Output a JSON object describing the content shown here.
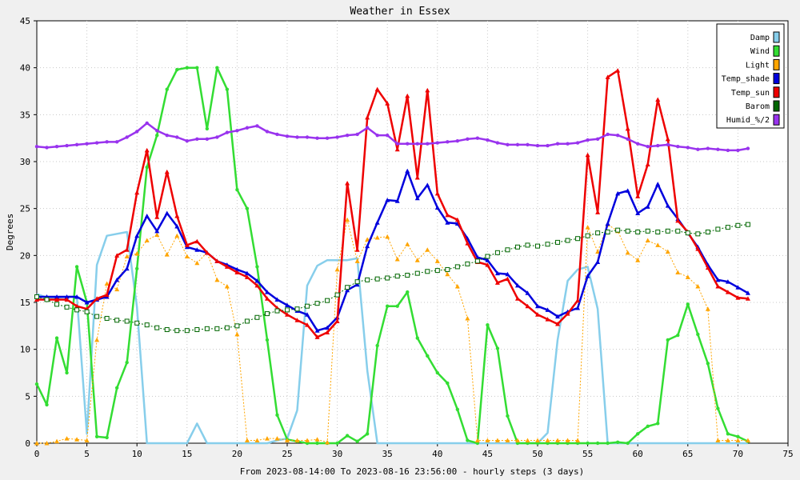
{
  "chart_data": {
    "type": "line",
    "title": "Weather in Essex",
    "xlabel": "From 2023-08-14:00 To 2023-08-16 23:56:00 - hourly steps (3 days)",
    "ylabel": "Degrees",
    "xlim": [
      0,
      75
    ],
    "ylim": [
      0,
      45
    ],
    "xticks": [
      0,
      5,
      10,
      15,
      20,
      25,
      30,
      35,
      40,
      45,
      50,
      55,
      60,
      65,
      70,
      75
    ],
    "yticks": [
      0,
      5,
      10,
      15,
      20,
      25,
      30,
      35,
      40,
      45
    ],
    "grid": true,
    "legend_position": "top-right",
    "series": [
      {
        "name": "Damp",
        "color": "#87ceeb",
        "style": "solid",
        "marker": "none",
        "values": [
          15.9,
          15.5,
          15.5,
          15.6,
          15.6,
          1.0,
          19.0,
          22.1,
          22.3,
          22.5,
          14.5,
          0,
          0,
          0,
          0,
          0,
          2.1,
          0,
          0,
          0,
          0,
          0,
          0,
          0,
          0.3,
          0.5,
          3.5,
          16.8,
          18.9,
          19.5,
          19.5,
          19.5,
          19.7,
          7.7,
          0,
          0,
          0,
          0,
          0,
          0,
          0,
          0,
          0,
          0,
          0,
          0,
          0,
          0,
          0,
          0,
          0,
          1.1,
          11.0,
          17.3,
          18.5,
          18.8,
          14.3,
          0,
          0,
          0,
          0,
          0,
          0,
          0,
          0,
          0,
          0,
          0,
          0,
          0,
          0,
          0
        ]
      },
      {
        "name": "Wind",
        "color": "#33dd33",
        "style": "solid",
        "marker": "dot",
        "values": [
          6.3,
          4.1,
          11.2,
          7.5,
          18.8,
          15.0,
          0.7,
          0.6,
          5.9,
          8.6,
          18.6,
          29.4,
          32.8,
          37.7,
          39.8,
          40.0,
          40.0,
          33.5,
          40.0,
          37.7,
          27.0,
          25.0,
          18.8,
          11.0,
          3.0,
          0.4,
          0.2,
          0,
          0,
          0,
          0,
          0.8,
          0.2,
          1.0,
          10.4,
          14.6,
          14.6,
          16.1,
          11.2,
          9.3,
          7.5,
          6.4,
          3.6,
          0.3,
          0,
          12.6,
          10.1,
          2.9,
          0,
          0,
          0,
          0,
          0,
          0,
          0,
          0,
          0,
          0,
          0.1,
          0,
          1.0,
          1.8,
          2.1,
          11.0,
          11.5,
          14.8,
          11.6,
          8.5,
          3.7,
          1.0,
          0.7,
          0.2
        ]
      },
      {
        "name": "Light",
        "color": "#ffa500",
        "style": "dotted",
        "marker": "triangle",
        "values": [
          0,
          0,
          0.2,
          0.5,
          0.4,
          0.3,
          11.0,
          17.0,
          16.4,
          19.9,
          20.2,
          21.6,
          22.2,
          20.1,
          22.1,
          19.9,
          19.2,
          20.3,
          17.4,
          16.7,
          11.6,
          0.3,
          0.3,
          0.5,
          0.5,
          0.3,
          0.3,
          0.3,
          0.4,
          0.1,
          18.5,
          23.8,
          19.4,
          21.7,
          21.9,
          22.0,
          19.6,
          21.2,
          19.5,
          20.6,
          19.4,
          18.0,
          16.7,
          13.3,
          0.3,
          0.3,
          0.3,
          0.3,
          0.3,
          0.3,
          0.3,
          0.3,
          0.3,
          0.3,
          0.3,
          23.0,
          20.4,
          23.3,
          22.6,
          20.3,
          19.5,
          21.6,
          21.1,
          20.4,
          18.2,
          17.7,
          16.7,
          14.3,
          0.3,
          0.3,
          0.3,
          0.3
        ]
      },
      {
        "name": "Temp_shade",
        "color": "#0000dd",
        "style": "solid",
        "marker": "triangle",
        "values": [
          15.6,
          15.6,
          15.6,
          15.6,
          15.6,
          15.0,
          15.3,
          15.6,
          17.4,
          18.6,
          22.1,
          24.2,
          22.6,
          24.5,
          23.1,
          20.9,
          20.6,
          20.3,
          19.4,
          19.0,
          18.5,
          18.1,
          17.3,
          16.1,
          15.3,
          14.7,
          14.1,
          13.7,
          12.0,
          12.3,
          13.4,
          16.3,
          16.9,
          21.0,
          23.5,
          25.9,
          25.8,
          29.0,
          26.1,
          27.5,
          25.1,
          23.5,
          23.4,
          21.8,
          19.8,
          19.5,
          18.1,
          18.0,
          16.8,
          16.0,
          14.6,
          14.2,
          13.5,
          14.0,
          14.4,
          17.8,
          19.3,
          23.4,
          26.6,
          26.9,
          24.5,
          25.2,
          27.6,
          25.3,
          23.9,
          22.4,
          20.9,
          19.0,
          17.4,
          17.2,
          16.6,
          16.0
        ]
      },
      {
        "name": "Temp_sun",
        "color": "#ee0000",
        "style": "solid",
        "marker": "triangle",
        "values": [
          15.3,
          15.3,
          15.3,
          15.3,
          14.6,
          14.3,
          15.4,
          15.8,
          20.0,
          20.6,
          26.7,
          31.2,
          24.1,
          28.9,
          24.2,
          21.1,
          21.5,
          20.3,
          19.4,
          18.8,
          18.2,
          17.7,
          16.8,
          15.4,
          14.4,
          13.7,
          13.1,
          12.6,
          11.3,
          11.8,
          13.0,
          27.7,
          20.6,
          34.7,
          37.7,
          36.2,
          31.3,
          37.0,
          28.3,
          37.6,
          26.6,
          24.3,
          23.8,
          21.3,
          19.3,
          19.0,
          17.1,
          17.5,
          15.4,
          14.6,
          13.7,
          13.2,
          12.7,
          13.8,
          15.2,
          30.7,
          24.6,
          39.0,
          39.7,
          33.5,
          26.3,
          29.7,
          36.6,
          32.4,
          23.7,
          22.5,
          20.7,
          18.7,
          16.7,
          16.1,
          15.5,
          15.4
        ]
      },
      {
        "name": "Barom",
        "color": "#006600",
        "style": "dotted",
        "marker": "square",
        "values": [
          15.6,
          15.3,
          14.8,
          14.5,
          14.2,
          14.0,
          13.5,
          13.3,
          13.1,
          13.0,
          12.8,
          12.6,
          12.3,
          12.1,
          12.0,
          12.0,
          12.1,
          12.2,
          12.2,
          12.3,
          12.5,
          13.0,
          13.4,
          13.8,
          14.1,
          14.2,
          14.3,
          14.6,
          14.9,
          15.2,
          15.8,
          16.6,
          17.2,
          17.4,
          17.5,
          17.6,
          17.8,
          17.9,
          18.1,
          18.3,
          18.4,
          18.5,
          18.8,
          19.1,
          19.4,
          19.9,
          20.3,
          20.6,
          20.9,
          21.1,
          21.0,
          21.2,
          21.4,
          21.6,
          21.8,
          22.1,
          22.4,
          22.5,
          22.7,
          22.6,
          22.5,
          22.6,
          22.5,
          22.6,
          22.6,
          22.4,
          22.3,
          22.5,
          22.8,
          23.0,
          23.2,
          23.3
        ]
      },
      {
        "name": "Humid_%/2",
        "color": "#9933ee",
        "style": "solid",
        "marker": "dot",
        "values": [
          31.6,
          31.5,
          31.6,
          31.7,
          31.8,
          31.9,
          32.0,
          32.1,
          32.1,
          32.6,
          33.2,
          34.1,
          33.3,
          32.8,
          32.6,
          32.2,
          32.4,
          32.4,
          32.6,
          33.1,
          33.3,
          33.6,
          33.8,
          33.2,
          32.9,
          32.7,
          32.6,
          32.6,
          32.5,
          32.5,
          32.6,
          32.8,
          32.9,
          33.6,
          32.8,
          32.8,
          31.9,
          31.9,
          31.9,
          31.9,
          32.0,
          32.1,
          32.2,
          32.4,
          32.5,
          32.3,
          32.0,
          31.8,
          31.8,
          31.8,
          31.7,
          31.7,
          31.9,
          31.9,
          32.0,
          32.3,
          32.4,
          32.9,
          32.8,
          32.4,
          31.9,
          31.6,
          31.7,
          31.8,
          31.6,
          31.5,
          31.3,
          31.4,
          31.3,
          31.2,
          31.2,
          31.4
        ]
      }
    ]
  }
}
